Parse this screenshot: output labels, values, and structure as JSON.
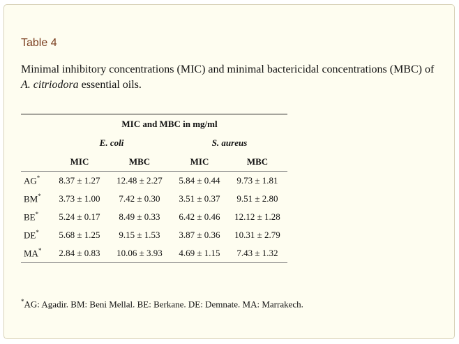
{
  "table_label": "Table 4",
  "caption": {
    "before": "Minimal inhibitory concentrations (MIC) and minimal bactericidal concentrations (MBC) of ",
    "species": "A. citriodora",
    "after": " essential oils."
  },
  "table": {
    "group_header": "MIC and MBC in mg/ml",
    "organisms": [
      "E. coli",
      "S. aureus"
    ],
    "metrics": [
      "MIC",
      "MBC",
      "MIC",
      "MBC"
    ],
    "footnote_marker": "*",
    "rows": [
      {
        "label": "AG",
        "values": [
          "8.37 ± 1.27",
          "12.48 ± 2.27",
          "5.84 ± 0.44",
          "9.73 ± 1.81"
        ]
      },
      {
        "label": "BM",
        "values": [
          "3.73 ± 1.00",
          "7.42 ± 0.30",
          "3.51 ± 0.37",
          "9.51 ± 2.80"
        ]
      },
      {
        "label": "BE",
        "values": [
          "5.24 ± 0.17",
          "8.49 ± 0.33",
          "6.42 ± 0.46",
          "12.12 ± 1.28"
        ]
      },
      {
        "label": "DE",
        "values": [
          "5.68 ± 1.25",
          "9.15 ± 1.53",
          "3.87 ± 0.36",
          "10.31 ± 2.79"
        ]
      },
      {
        "label": "MA",
        "values": [
          "2.84 ± 0.83",
          "10.06 ± 3.93",
          "4.69 ± 1.15",
          "7.43 ± 1.32"
        ]
      }
    ]
  },
  "footnote": {
    "marker": "*",
    "text": "AG: Agadir. BM: Beni Mellal. BE: Berkane. DE: Demnate. MA: Marrakech."
  }
}
